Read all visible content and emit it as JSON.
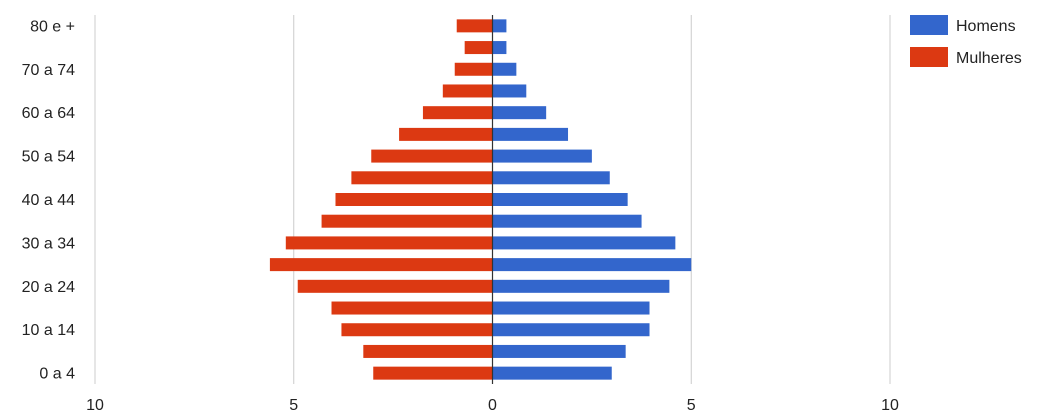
{
  "chart_data": {
    "type": "bar",
    "orientation": "horizontal",
    "layout": "population-pyramid",
    "title": "",
    "xlabel": "",
    "ylabel": "",
    "categories": [
      "80 e +",
      "75 a 79",
      "70 a 74",
      "65 a 69",
      "60 a 64",
      "55 a 59",
      "50 a 54",
      "45 a 49",
      "40 a 44",
      "35 a 39",
      "30 a 34",
      "25 a 29",
      "20 a 24",
      "15 a 19",
      "10 a 14",
      "5 a 9",
      "0 a 4"
    ],
    "visible_category_labels": [
      "80 e +",
      "70 a 74",
      "60 a 64",
      "50 a 54",
      "40 a 44",
      "30 a 34",
      "20 a 24",
      "10 a 14",
      "0 a 4"
    ],
    "series": [
      {
        "name": "Homens",
        "color": "#3366cc",
        "side": "right",
        "values": [
          0.35,
          0.35,
          0.6,
          0.85,
          1.35,
          1.9,
          2.5,
          2.95,
          3.4,
          3.75,
          4.6,
          5.0,
          4.45,
          3.95,
          3.95,
          3.35,
          3.0
        ]
      },
      {
        "name": "Mulheres",
        "color": "#dc3912",
        "side": "left",
        "values": [
          0.9,
          0.7,
          0.95,
          1.25,
          1.75,
          2.35,
          3.05,
          3.55,
          3.95,
          4.3,
          5.2,
          5.6,
          4.9,
          4.05,
          3.8,
          3.25,
          3.0
        ]
      }
    ],
    "xlim": [
      -10,
      10
    ],
    "x_ticks": [
      -10,
      -5,
      0,
      5,
      10
    ],
    "x_tick_labels": [
      "10",
      "5",
      "0",
      "5",
      "10"
    ],
    "grid": true,
    "legend_position": "top-right"
  }
}
